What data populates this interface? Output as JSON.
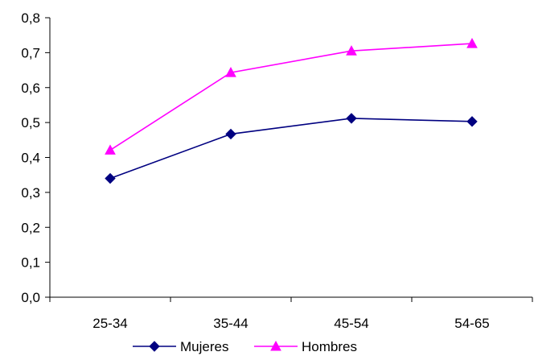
{
  "chart_data": {
    "type": "line",
    "title": "",
    "xlabel": "",
    "ylabel": "",
    "categories": [
      "25-34",
      "35-44",
      "45-54",
      "54-65"
    ],
    "ylim": [
      0,
      0.8
    ],
    "yticks": [
      "0,0",
      "0,1",
      "0,2",
      "0,3",
      "0,4",
      "0,5",
      "0,6",
      "0,7",
      "0,8"
    ],
    "grid": false,
    "legend_position": "bottom",
    "series": [
      {
        "name": "Mujeres",
        "values": [
          0.34,
          0.467,
          0.512,
          0.503
        ],
        "color": "#000080",
        "marker": "diamond"
      },
      {
        "name": "Hombres",
        "values": [
          0.421,
          0.643,
          0.705,
          0.726
        ],
        "color": "#FF00FF",
        "marker": "triangle"
      }
    ]
  }
}
